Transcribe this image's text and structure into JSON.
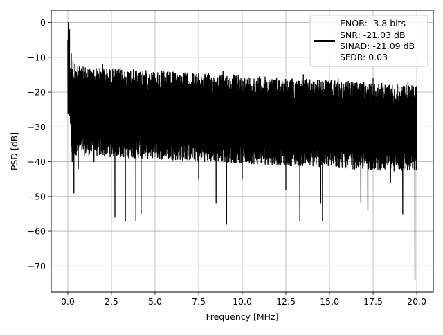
{
  "chart_data": {
    "type": "line",
    "xlabel": "Frequency [MHz]",
    "ylabel": "PSD [dB]",
    "xlim": [
      -0.95,
      20.95
    ],
    "ylim": [
      -77.5,
      3.5
    ],
    "xticks": [
      0.0,
      2.5,
      5.0,
      7.5,
      10.0,
      12.5,
      15.0,
      17.5,
      20.0
    ],
    "xtick_labels": [
      "0.0",
      "2.5",
      "5.0",
      "7.5",
      "10.0",
      "12.5",
      "15.0",
      "17.5",
      "20.0"
    ],
    "yticks": [
      0,
      -10,
      -20,
      -30,
      -40,
      -50,
      -60,
      -70
    ],
    "ytick_labels": [
      "0",
      "−10",
      "−20",
      "−30",
      "−40",
      "−50",
      "−60",
      "−70"
    ],
    "grid": true,
    "legend_position": "top-right",
    "legend_entries": [
      "ENOB: -3.8 bits",
      "SNR: -21.03 dB",
      "SINAD: -21.09 dB",
      "SFDR: 0.03"
    ],
    "series": [
      {
        "color": "#000000",
        "description": "dense noise-like PSD trace spanning 0 to 20 MHz",
        "peak": [
          0.0,
          0.0
        ],
        "points": [
          [
            0.0,
            -5
          ],
          [
            0.03,
            0.0
          ],
          [
            0.06,
            -26
          ],
          [
            0.1,
            -2
          ],
          [
            0.15,
            -29
          ],
          [
            0.2,
            -9
          ],
          [
            0.25,
            -40
          ],
          [
            0.3,
            -11
          ],
          [
            0.35,
            -49
          ],
          [
            0.4,
            -12
          ],
          [
            0.6,
            -42
          ],
          [
            1.0,
            -13
          ],
          [
            1.5,
            -40
          ],
          [
            2.0,
            -12
          ],
          [
            2.7,
            -56
          ],
          [
            3.0,
            -13
          ],
          [
            3.3,
            -57
          ],
          [
            3.6,
            -14
          ],
          [
            3.9,
            -57
          ],
          [
            4.2,
            -55
          ],
          [
            4.3,
            -14
          ],
          [
            6.0,
            -15
          ],
          [
            7.5,
            -45
          ],
          [
            8.5,
            -52
          ],
          [
            8.9,
            -14
          ],
          [
            9.1,
            -58
          ],
          [
            9.5,
            -15
          ],
          [
            10.0,
            -45
          ],
          [
            11.0,
            -16
          ],
          [
            12.5,
            -48
          ],
          [
            13.3,
            -57
          ],
          [
            13.5,
            -15
          ],
          [
            14.5,
            -52
          ],
          [
            14.6,
            -57
          ],
          [
            15.5,
            -16
          ],
          [
            16.8,
            -52
          ],
          [
            17.2,
            -54
          ],
          [
            17.5,
            -16
          ],
          [
            18.5,
            -46
          ],
          [
            19.2,
            -55
          ],
          [
            19.5,
            -17
          ],
          [
            19.9,
            -74
          ],
          [
            20.0,
            -20
          ]
        ]
      }
    ]
  }
}
